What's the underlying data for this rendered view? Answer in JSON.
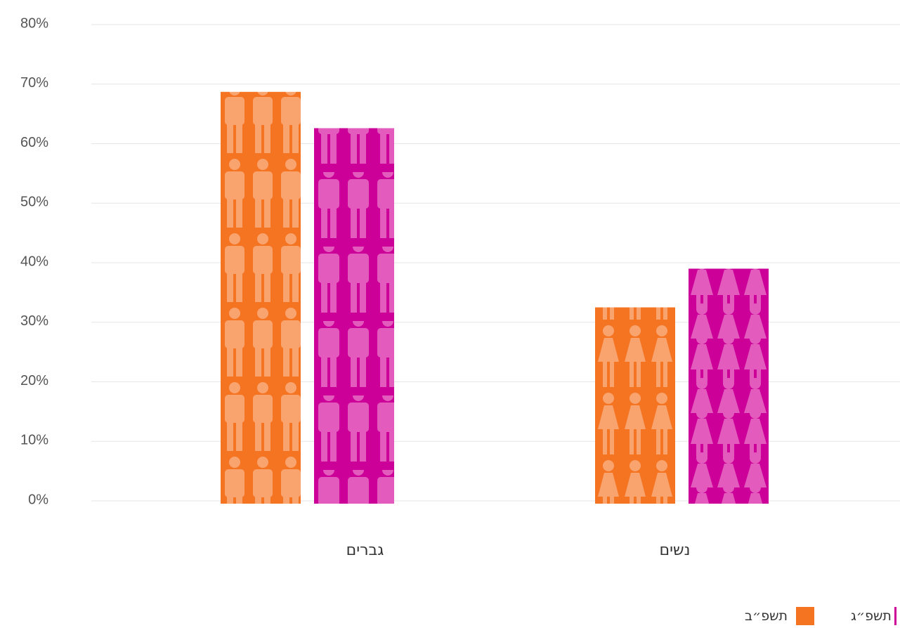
{
  "chart_data": {
    "type": "bar",
    "categories": [
      "גברים",
      "נשים"
    ],
    "series": [
      {
        "name": "תשפ״ב",
        "values": [
          68.7,
          32.5
        ],
        "color": "#f47421",
        "pattern_color": "#f9a36f",
        "pattern": "man"
      },
      {
        "name": "תשפ״ג",
        "values": [
          62.6,
          39.0
        ],
        "color": "#cc0099",
        "pattern_color": "#e35bbd",
        "pattern": "woman"
      }
    ],
    "ylim": [
      0,
      80
    ],
    "yticks": [
      0,
      10,
      20,
      30,
      40,
      50,
      60,
      70,
      80
    ],
    "ytick_labels": [
      "0%",
      "10%",
      "20%",
      "30%",
      "40%",
      "50%",
      "60%",
      "70%",
      "80%"
    ],
    "grid": true,
    "legend_position": "bottom-right"
  }
}
